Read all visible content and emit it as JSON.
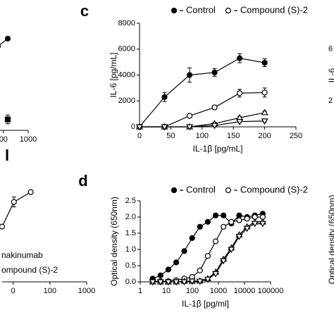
{
  "chart_data": [
    {
      "type": "line",
      "xscale": "log",
      "xlim": [
        60,
        1000
      ],
      "xticks": [
        {
          "value": 100,
          "label": "00"
        },
        1000
      ],
      "ylim": [
        0,
        100
      ],
      "series": [
        {
          "marker": "circle",
          "filled": true,
          "color": "#000000",
          "x": [
            60,
            150
          ],
          "values": [
            77,
            84
          ]
        },
        {
          "marker": "square",
          "filled": true,
          "color": "#000000",
          "x": [
            150
          ],
          "values": [
            10
          ],
          "errors": [
            4
          ]
        }
      ]
    },
    {
      "type": "line",
      "panel": "l",
      "xscale": "log",
      "xlim": [
        5,
        1000
      ],
      "xticks": [
        {
          "value": 10,
          "label": "0"
        },
        100,
        1000
      ],
      "ylim": [
        0,
        100
      ],
      "legend_texts": [
        "nakinumab",
        "ompound (S)-2"
      ],
      "series": [
        {
          "marker": "circle",
          "filled": false,
          "color": "#000000",
          "x": [
            5,
            10.5,
            30
          ],
          "values": [
            56,
            81,
            91
          ],
          "errors": [
            0,
            5,
            0
          ]
        }
      ]
    },
    {
      "type": "line",
      "panel": "c",
      "xlabel": "IL-1β [pg/mL]",
      "ylabel": "IL-6 [pg/mL]",
      "xlim": [
        0,
        250
      ],
      "xticks": [
        0,
        50,
        100,
        150,
        200,
        250
      ],
      "ylim": [
        0,
        8000
      ],
      "yticks": [
        0,
        2000,
        4000,
        6000,
        8000
      ],
      "series": [
        {
          "name": "Control",
          "marker": "circle",
          "filled": true,
          "color": "#000000",
          "x": [
            0,
            40,
            80,
            120,
            160,
            200
          ],
          "values": [
            0,
            2300,
            4000,
            4200,
            5300,
            4950
          ],
          "errors": [
            0,
            350,
            550,
            300,
            350,
            300
          ]
        },
        {
          "name": "Compound (S)-2",
          "marker": "circle",
          "filled": false,
          "color": "#000000",
          "x": [
            0,
            40,
            80,
            120,
            160,
            200
          ],
          "values": [
            0,
            0,
            850,
            1500,
            2600,
            2650
          ],
          "errors": [
            0,
            0,
            80,
            150,
            300,
            350
          ]
        },
        {
          "marker": "triangle-up",
          "filled": false,
          "color": "#000000",
          "x": [
            0,
            40,
            80,
            120,
            160,
            200
          ],
          "values": [
            0,
            0,
            0,
            250,
            700,
            1100
          ],
          "errors": [
            0,
            0,
            0,
            80,
            100,
            120
          ]
        },
        {
          "marker": "triangle-down",
          "filled": false,
          "color": "#000000",
          "x": [
            0,
            40,
            80,
            120,
            160,
            200
          ],
          "values": [
            0,
            0,
            0,
            100,
            400,
            450
          ],
          "errors": [
            0,
            0,
            0,
            50,
            60,
            80
          ]
        }
      ]
    },
    {
      "type": "line",
      "panel": "d",
      "xlabel": "IL-1β [pg/ml]",
      "ylabel": "Optical density (650nm)",
      "xscale": "log",
      "xlim": [
        1,
        100000
      ],
      "xticks": [
        1,
        10,
        100,
        1000,
        10000,
        100000
      ],
      "ylim": [
        0,
        2.5
      ],
      "yticks": [
        {
          "value": 0,
          "label": "0.0"
        },
        {
          "value": 0.5,
          "label": "0.5"
        },
        {
          "value": 1,
          "label": "1.0"
        },
        {
          "value": 1.5,
          "label": "1.5"
        },
        {
          "value": 2,
          "label": "2.0"
        },
        {
          "value": 2.5,
          "label": "2.5"
        }
      ],
      "series": [
        {
          "name": "Control",
          "marker": "circle",
          "filled": true,
          "color": "#000000",
          "x": [
            3,
            6,
            12,
            24,
            49,
            98,
            195,
            390,
            781,
            1562,
            3125,
            6250,
            12500,
            25000,
            50000
          ],
          "values": [
            0.1,
            0.2,
            0.38,
            0.6,
            0.95,
            1.35,
            1.7,
            1.85,
            2.05,
            2.05,
            1.8,
            2.05,
            2.0,
            2.05,
            2.1
          ]
        },
        {
          "name": "Compound (S)-2",
          "marker": "circle",
          "filled": false,
          "color": "#000000",
          "x": [
            3,
            6,
            12,
            24,
            49,
            98,
            195,
            390,
            781,
            1562,
            3125,
            6250,
            12500,
            25000,
            50000
          ],
          "values": [
            0.02,
            0.02,
            0.02,
            0.05,
            0.1,
            0.15,
            0.35,
            0.8,
            1.25,
            1.7,
            1.85,
            1.9,
            1.95,
            2.0,
            2.0
          ]
        },
        {
          "marker": "triangle-up",
          "filled": false,
          "color": "#000000",
          "x": [
            3,
            6,
            12,
            24,
            49,
            98,
            195,
            390,
            781,
            1562,
            3125,
            6250,
            12500,
            25000,
            50000
          ],
          "values": [
            0,
            0,
            0,
            0,
            0.02,
            0.02,
            0.03,
            0.1,
            0.3,
            0.7,
            1.05,
            1.45,
            1.7,
            1.85,
            1.85
          ]
        },
        {
          "marker": "triangle-down",
          "filled": false,
          "color": "#000000",
          "x": [
            3,
            6,
            12,
            24,
            49,
            98,
            195,
            390,
            781,
            1562,
            3125,
            6250,
            12500,
            25000,
            50000
          ],
          "values": [
            0,
            0,
            0,
            0,
            0,
            0.02,
            0.02,
            0.08,
            0.25,
            0.65,
            1.0,
            1.4,
            1.65,
            1.8,
            1.8
          ]
        }
      ]
    },
    {
      "type": "line",
      "ylabel": "IL-6",
      "ylim": [
        0,
        8000
      ],
      "yticks": [
        {
          "value": 6000,
          "label": "6"
        },
        {
          "value": 2000,
          "label": "2"
        }
      ]
    },
    {
      "type": "line",
      "ylabel": "Optical density (650nm)"
    }
  ]
}
